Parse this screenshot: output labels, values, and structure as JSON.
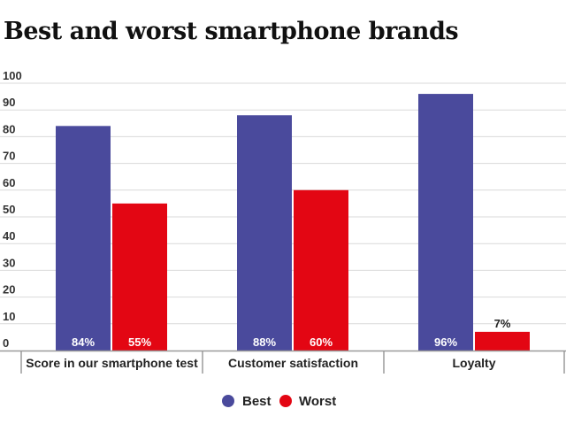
{
  "chart_data": {
    "type": "bar",
    "title": "Best and worst smartphone brands",
    "categories": [
      "Score in our smartphone test",
      "Customer satisfaction",
      "Loyalty"
    ],
    "series": [
      {
        "name": "Best",
        "values": [
          84,
          88,
          96
        ],
        "labels": [
          "84%",
          "88%",
          "96%"
        ],
        "color": "#4a4a9c"
      },
      {
        "name": "Worst",
        "values": [
          55,
          60,
          7
        ],
        "labels": [
          "55%",
          "60%",
          "7%"
        ],
        "color": "#e30613"
      }
    ],
    "yticks": [
      "0",
      "10",
      "20",
      "30",
      "40",
      "50",
      "60",
      "70",
      "80",
      "90",
      "100"
    ],
    "ylim": [
      0,
      100
    ],
    "grid": true,
    "legend_position": "bottom-center"
  }
}
